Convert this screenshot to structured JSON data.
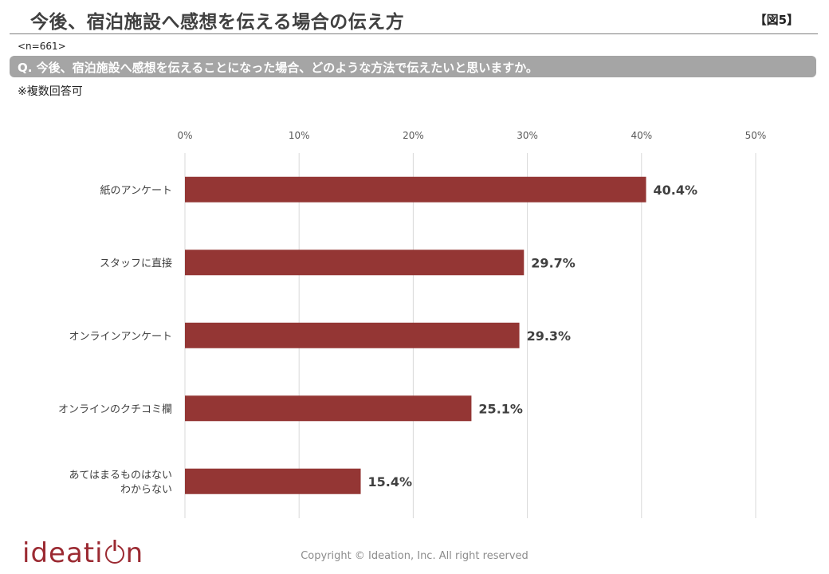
{
  "header": {
    "title": "今後、宿泊施設へ感想を伝える場合の伝え方",
    "figure_label": "【図5】"
  },
  "sample_size": "<n=661>",
  "question": "Q. 今後、宿泊施設へ感想を伝えることになった場合、どのような方法で伝えたいと思いますか。",
  "note": "※複数回答可",
  "chart_data": {
    "type": "bar",
    "orientation": "horizontal",
    "categories": [
      [
        "紙のアンケート"
      ],
      [
        "スタッフに直接"
      ],
      [
        "オンラインアンケート"
      ],
      [
        "オンラインのクチコミ欄"
      ],
      [
        "あてはまるものはない",
        "わからない"
      ]
    ],
    "values": [
      40.4,
      29.7,
      29.3,
      25.1,
      15.4
    ],
    "value_labels": [
      "40.4%",
      "29.7%",
      "29.3%",
      "25.1%",
      "15.4%"
    ],
    "xlim": [
      0,
      50
    ],
    "ticks": [
      0,
      10,
      20,
      30,
      40,
      50
    ],
    "tick_labels": [
      "0%",
      "10%",
      "20%",
      "30%",
      "40%",
      "50%"
    ],
    "axis_position": "top",
    "grid": true,
    "bar_color": "#943634"
  },
  "footer": {
    "logo_before": "ideati",
    "logo_after": "n",
    "copyright": "Copyright © Ideation, Inc. All right reserved"
  }
}
